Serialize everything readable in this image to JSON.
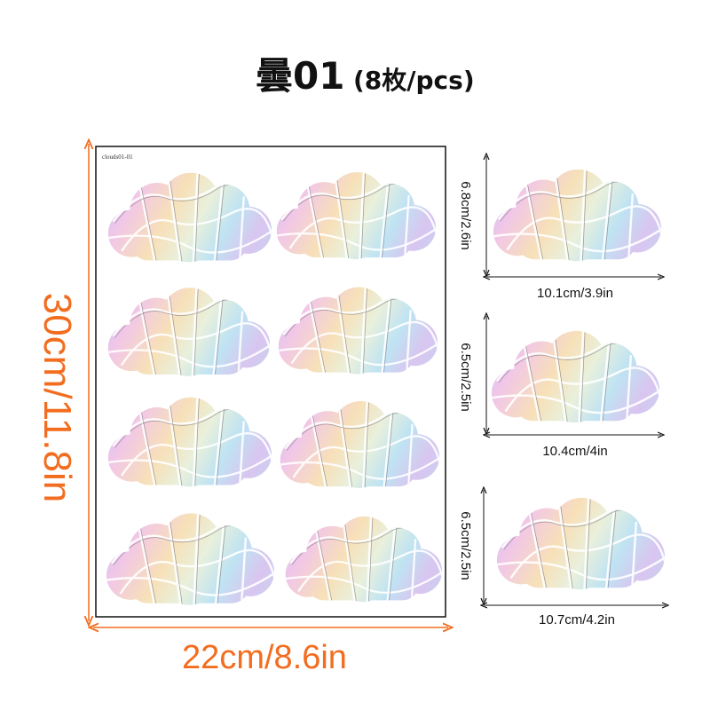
{
  "title": {
    "main": "曇01",
    "count": "(8枚/pcs)"
  },
  "sheet": {
    "label": "clouds01-01",
    "height": "30cm/11.8in",
    "width": "22cm/8.6in"
  },
  "sizes": [
    {
      "height": "6.8cm/2.6in",
      "width": "10.1cm/3.9in"
    },
    {
      "height": "6.5cm/2.5in",
      "width": "10.4cm/4in"
    },
    {
      "height": "6.5cm/2.5in",
      "width": "10.7cm/4.2in"
    }
  ]
}
